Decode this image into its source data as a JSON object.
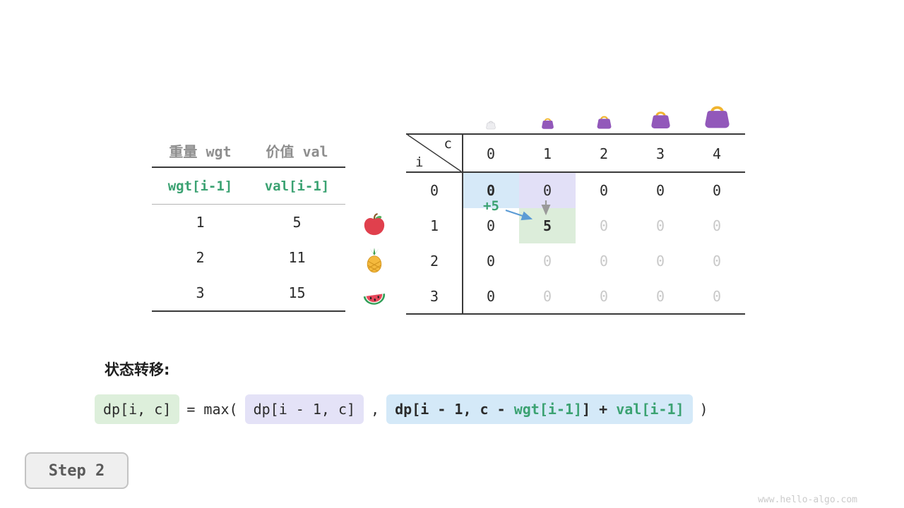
{
  "meta": {
    "step_button": "Step 2",
    "watermark": "www.hello-algo.com"
  },
  "colors": {
    "accent_green": "#3ba272",
    "highlight_blue": "#d6e9f8",
    "highlight_purple": "#e2e0f7",
    "highlight_green": "#dcedda",
    "box_green": "#ddefdb",
    "box_purple": "#e4e2f7",
    "box_blue": "#d4e9f8",
    "faded_text": "#c9c9c9",
    "arrow_blue": "#5b9bd5",
    "arrow_gray": "#9a9a9a"
  },
  "item_table": {
    "col_headers": [
      "重量 wgt",
      "价值 val"
    ],
    "sub_headers": [
      "wgt[i-1]",
      "val[i-1]"
    ],
    "rows": [
      {
        "wgt": "1",
        "val": "5",
        "icon": "apple"
      },
      {
        "wgt": "2",
        "val": "11",
        "icon": "pineapple"
      },
      {
        "wgt": "3",
        "val": "15",
        "icon": "watermelon"
      }
    ]
  },
  "dp_table": {
    "corner_row_label": "i",
    "corner_col_label": "c",
    "col_headers": [
      "0",
      "1",
      "2",
      "3",
      "4"
    ],
    "row_headers": [
      "0",
      "1",
      "2",
      "3"
    ],
    "cells": [
      [
        {
          "v": "0",
          "bg": "blue",
          "bold": true
        },
        {
          "v": "0",
          "bg": "purple"
        },
        {
          "v": "0"
        },
        {
          "v": "0"
        },
        {
          "v": "0"
        }
      ],
      [
        {
          "v": "0"
        },
        {
          "v": "5",
          "bg": "green",
          "bold": true
        },
        {
          "v": "0",
          "faded": true
        },
        {
          "v": "0",
          "faded": true
        },
        {
          "v": "0",
          "faded": true
        }
      ],
      [
        {
          "v": "0"
        },
        {
          "v": "0",
          "faded": true
        },
        {
          "v": "0",
          "faded": true
        },
        {
          "v": "0",
          "faded": true
        },
        {
          "v": "0",
          "faded": true
        }
      ],
      [
        {
          "v": "0"
        },
        {
          "v": "0",
          "faded": true
        },
        {
          "v": "0",
          "faded": true
        },
        {
          "v": "0",
          "faded": true
        },
        {
          "v": "0",
          "faded": true
        }
      ]
    ],
    "annotation": "+5",
    "bags": [
      {
        "size": 16,
        "faded": true
      },
      {
        "size": 21,
        "faded": false
      },
      {
        "size": 25,
        "faded": false
      },
      {
        "size": 33,
        "faded": false
      },
      {
        "size": 43,
        "faded": false
      }
    ]
  },
  "formula": {
    "section_label": "状态转移:",
    "lhs": "dp[i, c]",
    "equals_max": "= max(",
    "option_skip": "dp[i - 1, c]",
    "comma": ",",
    "option_take_prefix": "dp[i - 1, c - ",
    "option_take_wgt": "wgt[i-1]",
    "option_take_mid": "] + ",
    "option_take_val": "val[i-1]",
    "close_paren": ")"
  }
}
